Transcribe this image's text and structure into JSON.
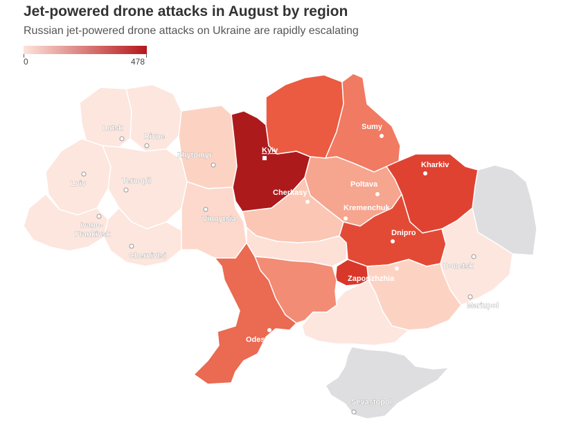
{
  "header": {
    "title": "Jet-powered drone attacks in August by region",
    "subtitle": "Russian jet-powered drone attacks on Ukraine are rapidly escalating"
  },
  "legend": {
    "min_label": "0",
    "max_label": "478",
    "color_low": "#fde3da",
    "color_high": "#b5171b"
  },
  "colors": {
    "occupied": "#dedee0",
    "border": "#ffffff",
    "label_light": "#ffffff",
    "label_dark": "#555555"
  },
  "cities": [
    {
      "key": "lutsk",
      "name": "Lutsk"
    },
    {
      "key": "rivne",
      "name": "Rivne"
    },
    {
      "key": "zhytomyr",
      "name": "Zhytomyr"
    },
    {
      "key": "kyiv",
      "name": "Kyiv"
    },
    {
      "key": "sumy",
      "name": "Sumy"
    },
    {
      "key": "kharkiv",
      "name": "Kharkiv"
    },
    {
      "key": "lviv",
      "name": "Lviv"
    },
    {
      "key": "ternopil",
      "name": "Ternopil"
    },
    {
      "key": "poltava",
      "name": "Poltava"
    },
    {
      "key": "cherkasy",
      "name": "Cherkasy"
    },
    {
      "key": "kremenchuk",
      "name": "Kremenchuk"
    },
    {
      "key": "vinnytsia",
      "name": "Vinnytsia"
    },
    {
      "key": "ivano",
      "name": "Ivano-\nFrankivsk"
    },
    {
      "key": "dnipro",
      "name": "Dnipro"
    },
    {
      "key": "chernivtsi",
      "name": "Chernivtsi"
    },
    {
      "key": "donetsk",
      "name": "Donetsk"
    },
    {
      "key": "zaporizhzhia",
      "name": "Zaporizhzhia"
    },
    {
      "key": "mariupol",
      "name": "Mariupol"
    },
    {
      "key": "odesa",
      "name": "Odesa"
    },
    {
      "key": "sevastopol",
      "name": "Sevastopol"
    }
  ]
}
